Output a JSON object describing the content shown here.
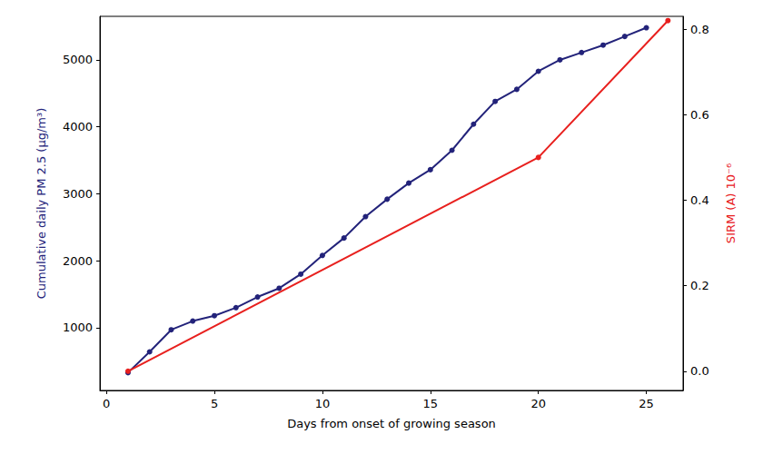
{
  "chart_data": {
    "type": "line",
    "x_label": "Days from onset of growing season",
    "y_label": "Cumulative daily PM 2.5 (μg/m³)",
    "y2_label": "SIRM (A) 10⁻⁶",
    "xlim": [
      -0.3,
      26.7
    ],
    "xticks": [
      0,
      5,
      10,
      15,
      20,
      25
    ],
    "ylim": [
      64,
      5650
    ],
    "yticks": [
      1000,
      2000,
      3000,
      4000,
      5000
    ],
    "y2lim": [
      -0.045,
      0.83
    ],
    "y2ticks": [
      {
        "value": 0,
        "label": "0.0"
      },
      0.2,
      0.4,
      0.6,
      0.8
    ],
    "grid": false,
    "series": [
      {
        "name": "Cumulative daily PM 2.5",
        "color": "#23237a",
        "marker": "o",
        "line_style": "solid",
        "x": [
          1,
          2,
          3,
          4,
          5,
          6,
          7,
          8,
          9,
          10,
          11,
          12,
          13,
          14,
          15,
          16,
          17,
          18,
          19,
          20,
          21,
          22,
          23,
          24,
          25
        ],
        "values": [
          330,
          640,
          970,
          1100,
          1180,
          1300,
          1460,
          1590,
          1800,
          2080,
          2340,
          2660,
          2920,
          3160,
          3360,
          3650,
          4040,
          4380,
          4560,
          4830,
          5000,
          5110,
          5220,
          5350,
          5480
        ]
      },
      {
        "name": "SIRM (A)",
        "color": "#e8201e",
        "marker": "o",
        "line_style": "solid",
        "axis": "y2",
        "x": [
          1,
          20,
          26
        ],
        "values": [
          0,
          0.5,
          0.82
        ]
      }
    ]
  }
}
